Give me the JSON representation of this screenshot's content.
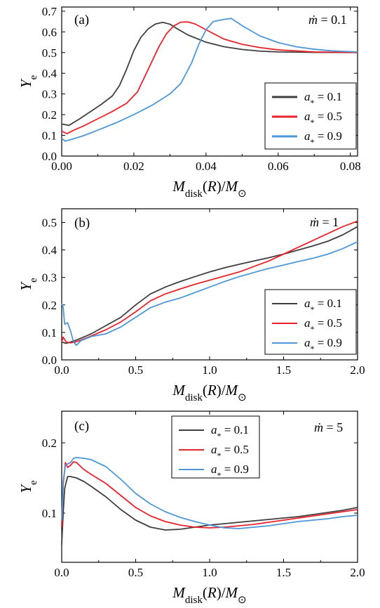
{
  "chart_data": [
    {
      "type": "line",
      "panel_label": "(a)",
      "annotation": "ṁ = 0.1",
      "xlabel": "M_disk(R)/M_⊙",
      "ylabel": "Y_e",
      "xlim": [
        0,
        0.082
      ],
      "ylim": [
        0,
        0.72
      ],
      "xticks": [
        "0.00",
        "0.02",
        "0.04",
        "0.06",
        "0.08"
      ],
      "yticks": [
        "0.0",
        "0.1",
        "0.2",
        "0.3",
        "0.4",
        "0.5",
        "0.6",
        "0.7"
      ],
      "legend_position": "center-right",
      "series": [
        {
          "name": "a* = 0.1",
          "color": "#3f3f3f",
          "points": [
            [
              0,
              0.155
            ],
            [
              0.002,
              0.148
            ],
            [
              0.005,
              0.18
            ],
            [
              0.008,
              0.215
            ],
            [
              0.011,
              0.25
            ],
            [
              0.014,
              0.29
            ],
            [
              0.016,
              0.34
            ],
            [
              0.018,
              0.42
            ],
            [
              0.02,
              0.51
            ],
            [
              0.022,
              0.575
            ],
            [
              0.024,
              0.615
            ],
            [
              0.026,
              0.638
            ],
            [
              0.028,
              0.646
            ],
            [
              0.03,
              0.637
            ],
            [
              0.032,
              0.615
            ],
            [
              0.035,
              0.585
            ],
            [
              0.04,
              0.55
            ],
            [
              0.045,
              0.528
            ],
            [
              0.05,
              0.515
            ],
            [
              0.055,
              0.507
            ],
            [
              0.06,
              0.503
            ],
            [
              0.07,
              0.501
            ],
            [
              0.082,
              0.5
            ]
          ]
        },
        {
          "name": "a* = 0.5",
          "color": "#e8232b",
          "points": [
            [
              0,
              0.12
            ],
            [
              0.0015,
              0.108
            ],
            [
              0.003,
              0.122
            ],
            [
              0.006,
              0.145
            ],
            [
              0.01,
              0.18
            ],
            [
              0.014,
              0.215
            ],
            [
              0.018,
              0.255
            ],
            [
              0.021,
              0.31
            ],
            [
              0.024,
              0.42
            ],
            [
              0.027,
              0.53
            ],
            [
              0.029,
              0.59
            ],
            [
              0.031,
              0.628
            ],
            [
              0.033,
              0.647
            ],
            [
              0.035,
              0.648
            ],
            [
              0.037,
              0.638
            ],
            [
              0.04,
              0.61
            ],
            [
              0.045,
              0.565
            ],
            [
              0.05,
              0.54
            ],
            [
              0.055,
              0.524
            ],
            [
              0.06,
              0.513
            ],
            [
              0.07,
              0.503
            ],
            [
              0.082,
              0.5
            ]
          ]
        },
        {
          "name": "a* = 0.9",
          "color": "#4d97d6",
          "points": [
            [
              0,
              0.085
            ],
            [
              0.001,
              0.072
            ],
            [
              0.003,
              0.082
            ],
            [
              0.006,
              0.098
            ],
            [
              0.01,
              0.125
            ],
            [
              0.015,
              0.16
            ],
            [
              0.02,
              0.2
            ],
            [
              0.025,
              0.245
            ],
            [
              0.03,
              0.3
            ],
            [
              0.033,
              0.35
            ],
            [
              0.036,
              0.45
            ],
            [
              0.038,
              0.54
            ],
            [
              0.04,
              0.61
            ],
            [
              0.042,
              0.65
            ],
            [
              0.045,
              0.66
            ],
            [
              0.047,
              0.665
            ],
            [
              0.05,
              0.63
            ],
            [
              0.055,
              0.58
            ],
            [
              0.06,
              0.548
            ],
            [
              0.065,
              0.528
            ],
            [
              0.07,
              0.516
            ],
            [
              0.075,
              0.508
            ],
            [
              0.082,
              0.503
            ]
          ]
        }
      ]
    },
    {
      "type": "line",
      "panel_label": "(b)",
      "annotation": "ṁ = 1",
      "xlabel": "M_disk(R)/M_⊙",
      "ylabel": "Y_e",
      "xlim": [
        0,
        2.0
      ],
      "ylim": [
        0,
        0.55
      ],
      "xticks": [
        "0.0",
        "0.5",
        "1.0",
        "1.5",
        "2.0"
      ],
      "yticks": [
        "0.0",
        "0.1",
        "0.2",
        "0.3",
        "0.4",
        "0.5"
      ],
      "legend_position": "bottom-right",
      "series": [
        {
          "name": "a* = 0.1",
          "color": "#3f3f3f",
          "points": [
            [
              0,
              0.065
            ],
            [
              0.03,
              0.06
            ],
            [
              0.1,
              0.072
            ],
            [
              0.2,
              0.095
            ],
            [
              0.3,
              0.125
            ],
            [
              0.4,
              0.155
            ],
            [
              0.5,
              0.2
            ],
            [
              0.6,
              0.24
            ],
            [
              0.7,
              0.265
            ],
            [
              0.8,
              0.285
            ],
            [
              0.9,
              0.303
            ],
            [
              1.0,
              0.32
            ],
            [
              1.1,
              0.335
            ],
            [
              1.2,
              0.348
            ],
            [
              1.3,
              0.36
            ],
            [
              1.4,
              0.372
            ],
            [
              1.5,
              0.385
            ],
            [
              1.6,
              0.4
            ],
            [
              1.7,
              0.415
            ],
            [
              1.8,
              0.432
            ],
            [
              1.9,
              0.455
            ],
            [
              2.0,
              0.485
            ]
          ]
        },
        {
          "name": "a* = 0.5",
          "color": "#e8232b",
          "points": [
            [
              0,
              0.065
            ],
            [
              0.01,
              0.083
            ],
            [
              0.03,
              0.065
            ],
            [
              0.06,
              0.062
            ],
            [
              0.1,
              0.066
            ],
            [
              0.2,
              0.087
            ],
            [
              0.3,
              0.11
            ],
            [
              0.4,
              0.138
            ],
            [
              0.5,
              0.175
            ],
            [
              0.6,
              0.215
            ],
            [
              0.7,
              0.24
            ],
            [
              0.8,
              0.258
            ],
            [
              0.9,
              0.275
            ],
            [
              1.0,
              0.29
            ],
            [
              1.1,
              0.305
            ],
            [
              1.2,
              0.32
            ],
            [
              1.3,
              0.34
            ],
            [
              1.4,
              0.36
            ],
            [
              1.5,
              0.385
            ],
            [
              1.6,
              0.41
            ],
            [
              1.7,
              0.435
            ],
            [
              1.8,
              0.46
            ],
            [
              1.9,
              0.485
            ],
            [
              2.0,
              0.505
            ]
          ]
        },
        {
          "name": "a* = 0.9",
          "color": "#4d97d6",
          "points": [
            [
              0,
              0.205
            ],
            [
              0.01,
              0.19
            ],
            [
              0.02,
              0.13
            ],
            [
              0.04,
              0.135
            ],
            [
              0.06,
              0.105
            ],
            [
              0.08,
              0.065
            ],
            [
              0.1,
              0.053
            ],
            [
              0.13,
              0.07
            ],
            [
              0.2,
              0.085
            ],
            [
              0.3,
              0.095
            ],
            [
              0.4,
              0.12
            ],
            [
              0.5,
              0.155
            ],
            [
              0.6,
              0.19
            ],
            [
              0.7,
              0.21
            ],
            [
              0.8,
              0.225
            ],
            [
              0.9,
              0.245
            ],
            [
              1.0,
              0.265
            ],
            [
              1.1,
              0.285
            ],
            [
              1.2,
              0.303
            ],
            [
              1.3,
              0.318
            ],
            [
              1.4,
              0.333
            ],
            [
              1.5,
              0.345
            ],
            [
              1.6,
              0.358
            ],
            [
              1.7,
              0.37
            ],
            [
              1.8,
              0.385
            ],
            [
              1.9,
              0.405
            ],
            [
              2.0,
              0.43
            ]
          ]
        }
      ]
    },
    {
      "type": "line",
      "panel_label": "(c)",
      "annotation": "ṁ = 5",
      "xlabel": "M_disk(R)/M_⊙",
      "ylabel": "Y_e",
      "xlim": [
        0,
        2.0
      ],
      "ylim": [
        0.03,
        0.245
      ],
      "xticks": [
        "0.0",
        "0.5",
        "1.0",
        "1.5",
        "2.0"
      ],
      "yticks": [
        "0.1",
        "0.2"
      ],
      "ytick_values": [
        0.1,
        0.2
      ],
      "legend_position": "top-center",
      "series": [
        {
          "name": "a* = 0.1",
          "color": "#3f3f3f",
          "points": [
            [
              0,
              0.055
            ],
            [
              0.01,
              0.1
            ],
            [
              0.02,
              0.135
            ],
            [
              0.04,
              0.152
            ],
            [
              0.06,
              0.152
            ],
            [
              0.1,
              0.15
            ],
            [
              0.15,
              0.145
            ],
            [
              0.2,
              0.138
            ],
            [
              0.3,
              0.123
            ],
            [
              0.4,
              0.105
            ],
            [
              0.5,
              0.09
            ],
            [
              0.6,
              0.08
            ],
            [
              0.7,
              0.076
            ],
            [
              0.8,
              0.077
            ],
            [
              0.9,
              0.08
            ],
            [
              1.0,
              0.083
            ],
            [
              1.1,
              0.085
            ],
            [
              1.2,
              0.087
            ],
            [
              1.3,
              0.089
            ],
            [
              1.4,
              0.091
            ],
            [
              1.5,
              0.093
            ],
            [
              1.6,
              0.095
            ],
            [
              1.7,
              0.098
            ],
            [
              1.8,
              0.101
            ],
            [
              1.9,
              0.104
            ],
            [
              2.0,
              0.108
            ]
          ]
        },
        {
          "name": "a* = 0.5",
          "color": "#e8232b",
          "points": [
            [
              0,
              0.08
            ],
            [
              0.01,
              0.14
            ],
            [
              0.025,
              0.172
            ],
            [
              0.04,
              0.165
            ],
            [
              0.06,
              0.168
            ],
            [
              0.08,
              0.173
            ],
            [
              0.1,
              0.172
            ],
            [
              0.15,
              0.162
            ],
            [
              0.2,
              0.155
            ],
            [
              0.3,
              0.142
            ],
            [
              0.4,
              0.125
            ],
            [
              0.5,
              0.108
            ],
            [
              0.6,
              0.096
            ],
            [
              0.7,
              0.088
            ],
            [
              0.8,
              0.083
            ],
            [
              0.9,
              0.08
            ],
            [
              1.0,
              0.079
            ],
            [
              1.1,
              0.08
            ],
            [
              1.2,
              0.082
            ],
            [
              1.3,
              0.084
            ],
            [
              1.4,
              0.087
            ],
            [
              1.5,
              0.09
            ],
            [
              1.6,
              0.093
            ],
            [
              1.7,
              0.096
            ],
            [
              1.8,
              0.099
            ],
            [
              1.9,
              0.102
            ],
            [
              2.0,
              0.105
            ]
          ]
        },
        {
          "name": "a* = 0.9",
          "color": "#4d97d6",
          "points": [
            [
              0,
              0.09
            ],
            [
              0.01,
              0.145
            ],
            [
              0.025,
              0.168
            ],
            [
              0.04,
              0.17
            ],
            [
              0.06,
              0.172
            ],
            [
              0.08,
              0.178
            ],
            [
              0.1,
              0.179
            ],
            [
              0.15,
              0.178
            ],
            [
              0.2,
              0.176
            ],
            [
              0.3,
              0.166
            ],
            [
              0.4,
              0.148
            ],
            [
              0.5,
              0.128
            ],
            [
              0.6,
              0.113
            ],
            [
              0.7,
              0.102
            ],
            [
              0.8,
              0.094
            ],
            [
              0.9,
              0.088
            ],
            [
              1.0,
              0.083
            ],
            [
              1.1,
              0.079
            ],
            [
              1.2,
              0.078
            ],
            [
              1.3,
              0.08
            ],
            [
              1.4,
              0.082
            ],
            [
              1.5,
              0.085
            ],
            [
              1.6,
              0.088
            ],
            [
              1.7,
              0.09
            ],
            [
              1.8,
              0.092
            ],
            [
              1.9,
              0.095
            ],
            [
              2.0,
              0.097
            ]
          ]
        }
      ]
    }
  ]
}
